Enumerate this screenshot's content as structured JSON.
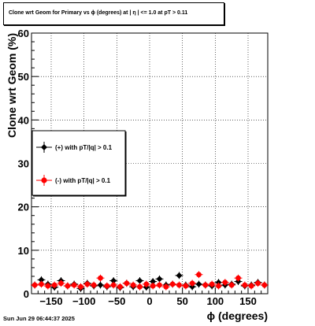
{
  "chart_data": {
    "type": "scatter",
    "title": "Clone wrt Geom for Primary vs ϕ (degrees) at |  η  | <= 1.0 at pT > 0.11",
    "xlabel": "ϕ (degrees)",
    "ylabel": "Clone wrt Geom (%)",
    "xlim": [
      -180,
      180
    ],
    "ylim": [
      0,
      60
    ],
    "xticks": [
      "−150",
      "−100",
      "−50",
      "0",
      "50",
      "100",
      "150"
    ],
    "yticks": [
      "0",
      "10",
      "20",
      "30",
      "40",
      "50",
      "60"
    ],
    "grid": true,
    "legend_position": "middle-left",
    "series": [
      {
        "name": "(+) with pT/|q| > 0.1",
        "color": "#000000",
        "x": [
          -175,
          -165,
          -155,
          -145,
          -135,
          -125,
          -115,
          -105,
          -95,
          -85,
          -75,
          -65,
          -55,
          -45,
          -35,
          -25,
          -15,
          -5,
          5,
          15,
          25,
          35,
          45,
          55,
          65,
          75,
          85,
          95,
          105,
          115,
          125,
          135,
          145,
          155,
          165,
          175
        ],
        "y": [
          2.0,
          3.2,
          2.2,
          1.5,
          3.0,
          1.8,
          2.2,
          1.2,
          2.4,
          1.8,
          2.0,
          1.6,
          3.0,
          1.4,
          2.4,
          1.6,
          3.0,
          1.5,
          2.8,
          3.4,
          2.0,
          2.2,
          4.2,
          2.0,
          1.6,
          2.2,
          2.0,
          1.8,
          2.6,
          2.0,
          2.2,
          2.8,
          1.8,
          2.0,
          2.6,
          2.0
        ]
      },
      {
        "name": "(-) with pT/|q| > 0.1",
        "color": "#ff0000",
        "x": [
          -175,
          -165,
          -155,
          -145,
          -135,
          -125,
          -115,
          -105,
          -95,
          -85,
          -75,
          -65,
          -55,
          -45,
          -35,
          -25,
          -15,
          -5,
          5,
          15,
          25,
          35,
          45,
          55,
          65,
          75,
          85,
          95,
          105,
          115,
          125,
          135,
          145,
          155,
          165,
          175
        ],
        "y": [
          2.0,
          2.2,
          1.8,
          2.0,
          2.4,
          1.8,
          2.0,
          1.6,
          2.2,
          2.0,
          3.6,
          1.8,
          2.0,
          1.6,
          2.4,
          2.0,
          1.6,
          2.2,
          1.8,
          2.0,
          1.6,
          2.2,
          2.0,
          1.8,
          2.4,
          4.4,
          2.0,
          2.2,
          1.8,
          2.6,
          2.0,
          3.6,
          2.0,
          1.8,
          2.4,
          2.0
        ]
      }
    ]
  },
  "footer": {
    "timestamp": "Sun Jun 29 06:44:37 2025"
  }
}
